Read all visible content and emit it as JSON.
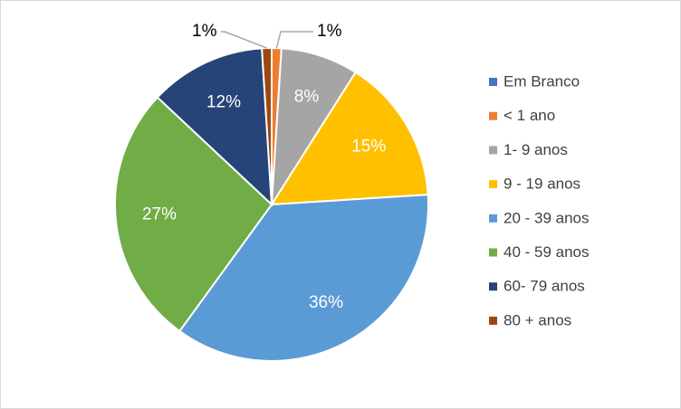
{
  "chart_data": {
    "type": "pie",
    "title": "",
    "legend_position": "right",
    "slices": [
      {
        "label": "Em Branco",
        "value": 0,
        "display": "",
        "color": "#4472C4",
        "label_color": "#ffffff"
      },
      {
        "label": "< 1 ano",
        "value": 1,
        "display": "1%",
        "color": "#ED7D31",
        "label_color": "#000000"
      },
      {
        "label": "1- 9 anos",
        "value": 8,
        "display": "8%",
        "color": "#A5A5A5",
        "label_color": "#ffffff"
      },
      {
        "label": "9 - 19 anos",
        "value": 15,
        "display": "15%",
        "color": "#FFC000",
        "label_color": "#ffffff"
      },
      {
        "label": "20 - 39 anos",
        "value": 36,
        "display": "36%",
        "color": "#5B9BD5",
        "label_color": "#ffffff"
      },
      {
        "label": "40 - 59 anos",
        "value": 27,
        "display": "27%",
        "color": "#70AD47",
        "label_color": "#ffffff"
      },
      {
        "label": "60- 79 anos",
        "value": 12,
        "display": "12%",
        "color": "#264478",
        "label_color": "#ffffff"
      },
      {
        "label": "80 + anos",
        "value": 1,
        "display": "1%",
        "color": "#9E480E",
        "label_color": "#000000"
      }
    ]
  }
}
